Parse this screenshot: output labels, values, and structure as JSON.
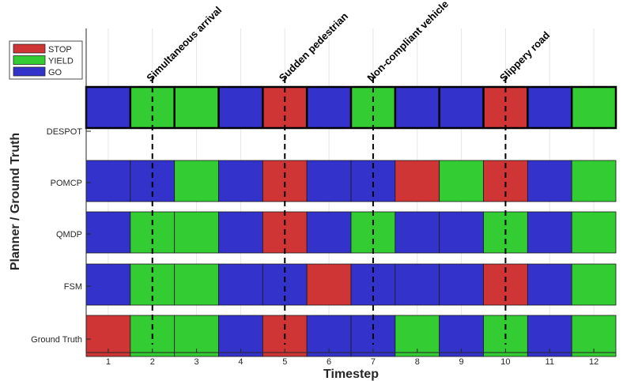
{
  "chart_data": {
    "type": "heatmap",
    "title": "",
    "xlabel": "Timestep",
    "ylabel": "Planner / Ground Truth",
    "x": [
      1,
      2,
      3,
      4,
      5,
      6,
      7,
      8,
      9,
      10,
      11,
      12
    ],
    "rows": [
      {
        "name": "DESPOT",
        "values": [
          "GO",
          "YIELD",
          "YIELD",
          "GO",
          "STOP",
          "GO",
          "YIELD",
          "GO",
          "GO",
          "STOP",
          "GO",
          "YIELD"
        ],
        "highlighted": true
      },
      {
        "name": "POMCP",
        "values": [
          "GO",
          "GO",
          "YIELD",
          "GO",
          "STOP",
          "GO",
          "GO",
          "STOP",
          "YIELD",
          "STOP",
          "GO",
          "YIELD"
        ]
      },
      {
        "name": "QMDP",
        "values": [
          "GO",
          "YIELD",
          "YIELD",
          "GO",
          "STOP",
          "GO",
          "YIELD",
          "GO",
          "GO",
          "YIELD",
          "GO",
          "YIELD"
        ]
      },
      {
        "name": "FSM",
        "values": [
          "GO",
          "YIELD",
          "YIELD",
          "GO",
          "GO",
          "STOP",
          "GO",
          "GO",
          "GO",
          "STOP",
          "GO",
          "YIELD"
        ]
      },
      {
        "name": "Ground Truth",
        "values": [
          "STOP",
          "YIELD",
          "YIELD",
          "GO",
          "STOP",
          "GO",
          "GO",
          "YIELD",
          "GO",
          "YIELD",
          "GO",
          "YIELD"
        ]
      }
    ],
    "legend": [
      {
        "label": "STOP",
        "key": "STOP",
        "color": "#d03535"
      },
      {
        "label": "YIELD",
        "key": "YIELD",
        "color": "#33cc33"
      },
      {
        "label": "GO",
        "key": "GO",
        "color": "#3333cc"
      }
    ],
    "legend_position": "top-left",
    "events": [
      {
        "label": "Simultaneous arrival",
        "timestep": 2
      },
      {
        "label": "Sudden pedestrian",
        "timestep": 5
      },
      {
        "label": "Non-compliant vehicle",
        "timestep": 7
      },
      {
        "label": "Slippery road",
        "timestep": 10
      }
    ],
    "grid": true
  }
}
